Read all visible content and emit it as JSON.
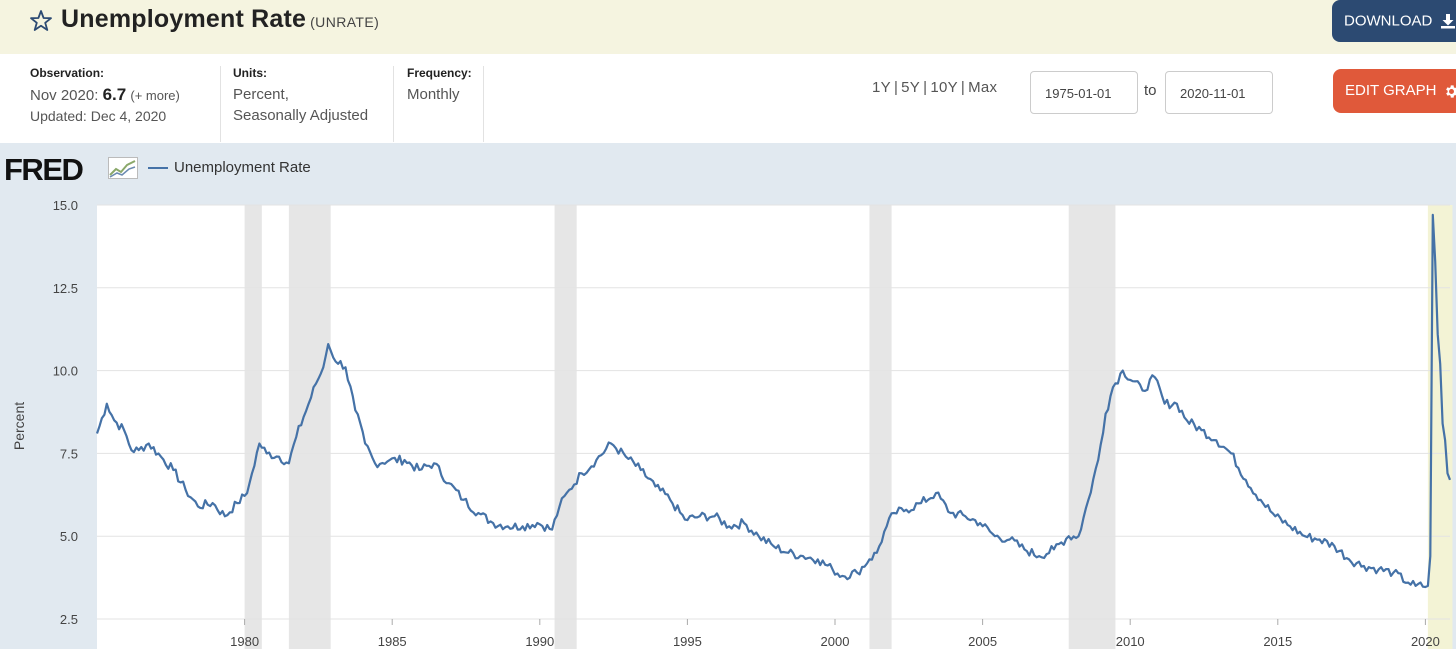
{
  "header": {
    "title": "Unemployment Rate",
    "series_id": "(UNRATE)",
    "download_label": "DOWNLOAD",
    "star_icon": "star-outline-icon",
    "download_icon": "download-icon"
  },
  "meta": {
    "observation_label": "Observation:",
    "observation_date": "Nov 2020:",
    "observation_value": "6.7",
    "observation_more": "(+ more)",
    "updated": "Updated: Dec 4, 2020",
    "units_label": "Units:",
    "units_line1": "Percent,",
    "units_line2": "Seasonally Adjusted",
    "frequency_label": "Frequency:",
    "frequency_value": "Monthly"
  },
  "controls": {
    "ranges": [
      "1Y",
      "5Y",
      "10Y",
      "Max"
    ],
    "start_date": "1975-01-01",
    "to_label": "to",
    "end_date": "2020-11-01",
    "edit_label": "EDIT GRAPH",
    "gear_icon": "gear-icon"
  },
  "chart_data": {
    "type": "line",
    "logo_text": "FRED",
    "series": [
      {
        "name": "Unemployment Rate",
        "color": "#4572a7",
        "points": [
          [
            "1975-01",
            8.1
          ],
          [
            "1975-05",
            9.0
          ],
          [
            "1975-08",
            8.5
          ],
          [
            "1975-12",
            8.2
          ],
          [
            "1976-03",
            7.6
          ],
          [
            "1976-06",
            7.6
          ],
          [
            "1976-10",
            7.8
          ],
          [
            "1977-03",
            7.4
          ],
          [
            "1977-08",
            7.0
          ],
          [
            "1978-01",
            6.4
          ],
          [
            "1978-06",
            5.9
          ],
          [
            "1978-12",
            6.0
          ],
          [
            "1979-05",
            5.6
          ],
          [
            "1979-10",
            6.0
          ],
          [
            "1980-02",
            6.3
          ],
          [
            "1980-04",
            6.9
          ],
          [
            "1980-07",
            7.8
          ],
          [
            "1980-10",
            7.5
          ],
          [
            "1981-03",
            7.4
          ],
          [
            "1981-07",
            7.2
          ],
          [
            "1981-10",
            8.0
          ],
          [
            "1982-01",
            8.6
          ],
          [
            "1982-06",
            9.6
          ],
          [
            "1982-09",
            10.1
          ],
          [
            "1982-11",
            10.8
          ],
          [
            "1983-01",
            10.4
          ],
          [
            "1983-06",
            10.1
          ],
          [
            "1983-10",
            8.8
          ],
          [
            "1984-02",
            7.8
          ],
          [
            "1984-06",
            7.2
          ],
          [
            "1984-12",
            7.3
          ],
          [
            "1985-06",
            7.3
          ],
          [
            "1985-12",
            7.0
          ],
          [
            "1986-06",
            7.2
          ],
          [
            "1986-12",
            6.6
          ],
          [
            "1987-06",
            6.1
          ],
          [
            "1987-12",
            5.7
          ],
          [
            "1988-06",
            5.4
          ],
          [
            "1988-12",
            5.3
          ],
          [
            "1989-06",
            5.3
          ],
          [
            "1989-12",
            5.4
          ],
          [
            "1990-06",
            5.2
          ],
          [
            "1990-09",
            5.9
          ],
          [
            "1991-01",
            6.4
          ],
          [
            "1991-06",
            6.9
          ],
          [
            "1991-12",
            7.3
          ],
          [
            "1992-06",
            7.8
          ],
          [
            "1992-12",
            7.4
          ],
          [
            "1993-06",
            7.0
          ],
          [
            "1993-12",
            6.5
          ],
          [
            "1994-06",
            6.1
          ],
          [
            "1994-12",
            5.5
          ],
          [
            "1995-06",
            5.6
          ],
          [
            "1995-12",
            5.6
          ],
          [
            "1996-06",
            5.3
          ],
          [
            "1996-12",
            5.4
          ],
          [
            "1997-06",
            5.0
          ],
          [
            "1997-12",
            4.7
          ],
          [
            "1998-06",
            4.5
          ],
          [
            "1998-12",
            4.4
          ],
          [
            "1999-06",
            4.3
          ],
          [
            "1999-12",
            4.0
          ],
          [
            "2000-04",
            3.8
          ],
          [
            "2000-10",
            3.9
          ],
          [
            "2001-03",
            4.3
          ],
          [
            "2001-06",
            4.5
          ],
          [
            "2001-10",
            5.3
          ],
          [
            "2002-01",
            5.7
          ],
          [
            "2002-06",
            5.8
          ],
          [
            "2002-12",
            6.0
          ],
          [
            "2003-06",
            6.3
          ],
          [
            "2003-12",
            5.7
          ],
          [
            "2004-06",
            5.6
          ],
          [
            "2004-12",
            5.4
          ],
          [
            "2005-06",
            5.0
          ],
          [
            "2005-12",
            4.9
          ],
          [
            "2006-06",
            4.6
          ],
          [
            "2006-12",
            4.4
          ],
          [
            "2007-06",
            4.6
          ],
          [
            "2007-12",
            5.0
          ],
          [
            "2008-04",
            5.0
          ],
          [
            "2008-08",
            6.1
          ],
          [
            "2008-12",
            7.3
          ],
          [
            "2009-03",
            8.7
          ],
          [
            "2009-06",
            9.5
          ],
          [
            "2009-10",
            10.0
          ],
          [
            "2010-06",
            9.4
          ],
          [
            "2010-11",
            9.8
          ],
          [
            "2011-03",
            9.0
          ],
          [
            "2011-08",
            9.0
          ],
          [
            "2011-12",
            8.5
          ],
          [
            "2012-06",
            8.2
          ],
          [
            "2012-12",
            7.9
          ],
          [
            "2013-06",
            7.5
          ],
          [
            "2013-12",
            6.7
          ],
          [
            "2014-06",
            6.1
          ],
          [
            "2014-12",
            5.6
          ],
          [
            "2015-06",
            5.3
          ],
          [
            "2015-12",
            5.0
          ],
          [
            "2016-06",
            4.9
          ],
          [
            "2016-12",
            4.7
          ],
          [
            "2017-06",
            4.3
          ],
          [
            "2017-12",
            4.1
          ],
          [
            "2018-06",
            4.0
          ],
          [
            "2018-12",
            3.9
          ],
          [
            "2019-06",
            3.6
          ],
          [
            "2019-09",
            3.5
          ],
          [
            "2020-02",
            3.5
          ],
          [
            "2020-03",
            4.4
          ],
          [
            "2020-04",
            14.7
          ],
          [
            "2020-05",
            13.3
          ],
          [
            "2020-06",
            11.1
          ],
          [
            "2020-07",
            10.2
          ],
          [
            "2020-08",
            8.4
          ],
          [
            "2020-09",
            7.9
          ],
          [
            "2020-10",
            6.9
          ],
          [
            "2020-11",
            6.7
          ]
        ]
      }
    ],
    "ylabel": "Percent",
    "ylim": [
      2.5,
      15.0
    ],
    "yticks": [
      "2.5",
      "5.0",
      "7.5",
      "10.0",
      "12.5",
      "15.0"
    ],
    "xlim": [
      "1975-01",
      "2020-11"
    ],
    "xticks": [
      "1980",
      "1985",
      "1990",
      "1995",
      "2000",
      "2005",
      "2010",
      "2015",
      "2020"
    ],
    "recessions": [
      [
        "1980-01",
        "1980-07"
      ],
      [
        "1981-07",
        "1982-11"
      ],
      [
        "1990-07",
        "1991-03"
      ],
      [
        "2001-03",
        "2001-11"
      ],
      [
        "2007-12",
        "2009-06"
      ],
      [
        "2020-02",
        "2020-11"
      ]
    ],
    "grid": true,
    "recession_color": "#e6e6e6",
    "current_recession_color": "#f3f3d5"
  }
}
